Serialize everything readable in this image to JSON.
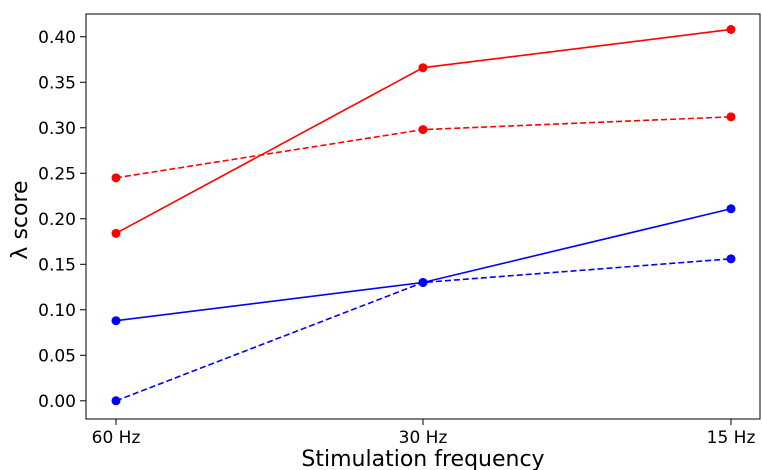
{
  "chart_data": {
    "type": "line",
    "title": "",
    "xlabel": "Stimulation frequency",
    "ylabel": "λ score",
    "categories": [
      "60 Hz",
      "30 Hz",
      "15 Hz"
    ],
    "ylim": [
      -0.02,
      0.425
    ],
    "yticks": [
      "0.00",
      "0.05",
      "0.10",
      "0.15",
      "0.20",
      "0.25",
      "0.30",
      "0.35",
      "0.40"
    ],
    "grid": false,
    "legend": "none",
    "series": [
      {
        "color": "#ff0000",
        "line_style": "solid",
        "marker": "circle",
        "values": [
          0.184,
          0.366,
          0.408
        ]
      },
      {
        "color": "#ff0000",
        "line_style": "dashed",
        "marker": "circle",
        "values": [
          0.245,
          0.298,
          0.312
        ]
      },
      {
        "color": "#0000ff",
        "line_style": "solid",
        "marker": "circle",
        "values": [
          0.088,
          0.13,
          0.211
        ]
      },
      {
        "color": "#0000ff",
        "line_style": "dashed",
        "marker": "circle",
        "values": [
          0.0,
          0.13,
          0.156
        ]
      }
    ]
  }
}
